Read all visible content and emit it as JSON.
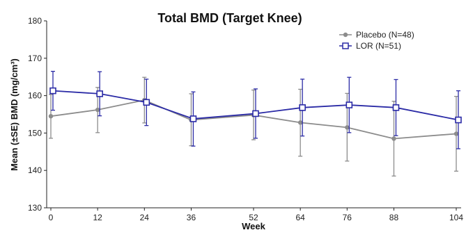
{
  "chart_data": {
    "type": "line",
    "title": "Total BMD (Target Knee)",
    "xlabel": "Week",
    "ylabel": "Mean (±SE) BMD (mg/cm³)",
    "x": [
      0,
      12,
      24,
      36,
      52,
      64,
      76,
      88,
      104
    ],
    "xlim": [
      0,
      104
    ],
    "ylim": [
      130,
      180
    ],
    "y_ticks": [
      130,
      140,
      150,
      160,
      170,
      180
    ],
    "grid": false,
    "legend_position": "top-right",
    "series": [
      {
        "name": "Placebo (N=48)",
        "color": "#8c8c8c",
        "marker": "filled-circle",
        "values": [
          154.5,
          156.2,
          158.8,
          153.5,
          154.8,
          152.8,
          151.5,
          148.5,
          149.8
        ],
        "err_low": [
          148.6,
          150.1,
          152.7,
          146.6,
          148.2,
          143.8,
          142.5,
          138.5,
          139.8
        ],
        "err_high": [
          160.3,
          162.2,
          164.9,
          160.5,
          161.5,
          161.7,
          160.6,
          158.5,
          159.8
        ]
      },
      {
        "name": "LOR (N=51)",
        "color": "#2b2ba6",
        "marker": "open-square",
        "values": [
          161.3,
          160.5,
          158.2,
          153.8,
          155.2,
          156.8,
          157.5,
          156.8,
          153.5
        ],
        "err_low": [
          156.1,
          154.6,
          152.0,
          146.5,
          148.6,
          149.2,
          150.1,
          149.3,
          145.8
        ],
        "err_high": [
          166.5,
          166.4,
          164.4,
          161.0,
          161.8,
          164.4,
          164.9,
          164.3,
          161.3
        ]
      }
    ]
  }
}
